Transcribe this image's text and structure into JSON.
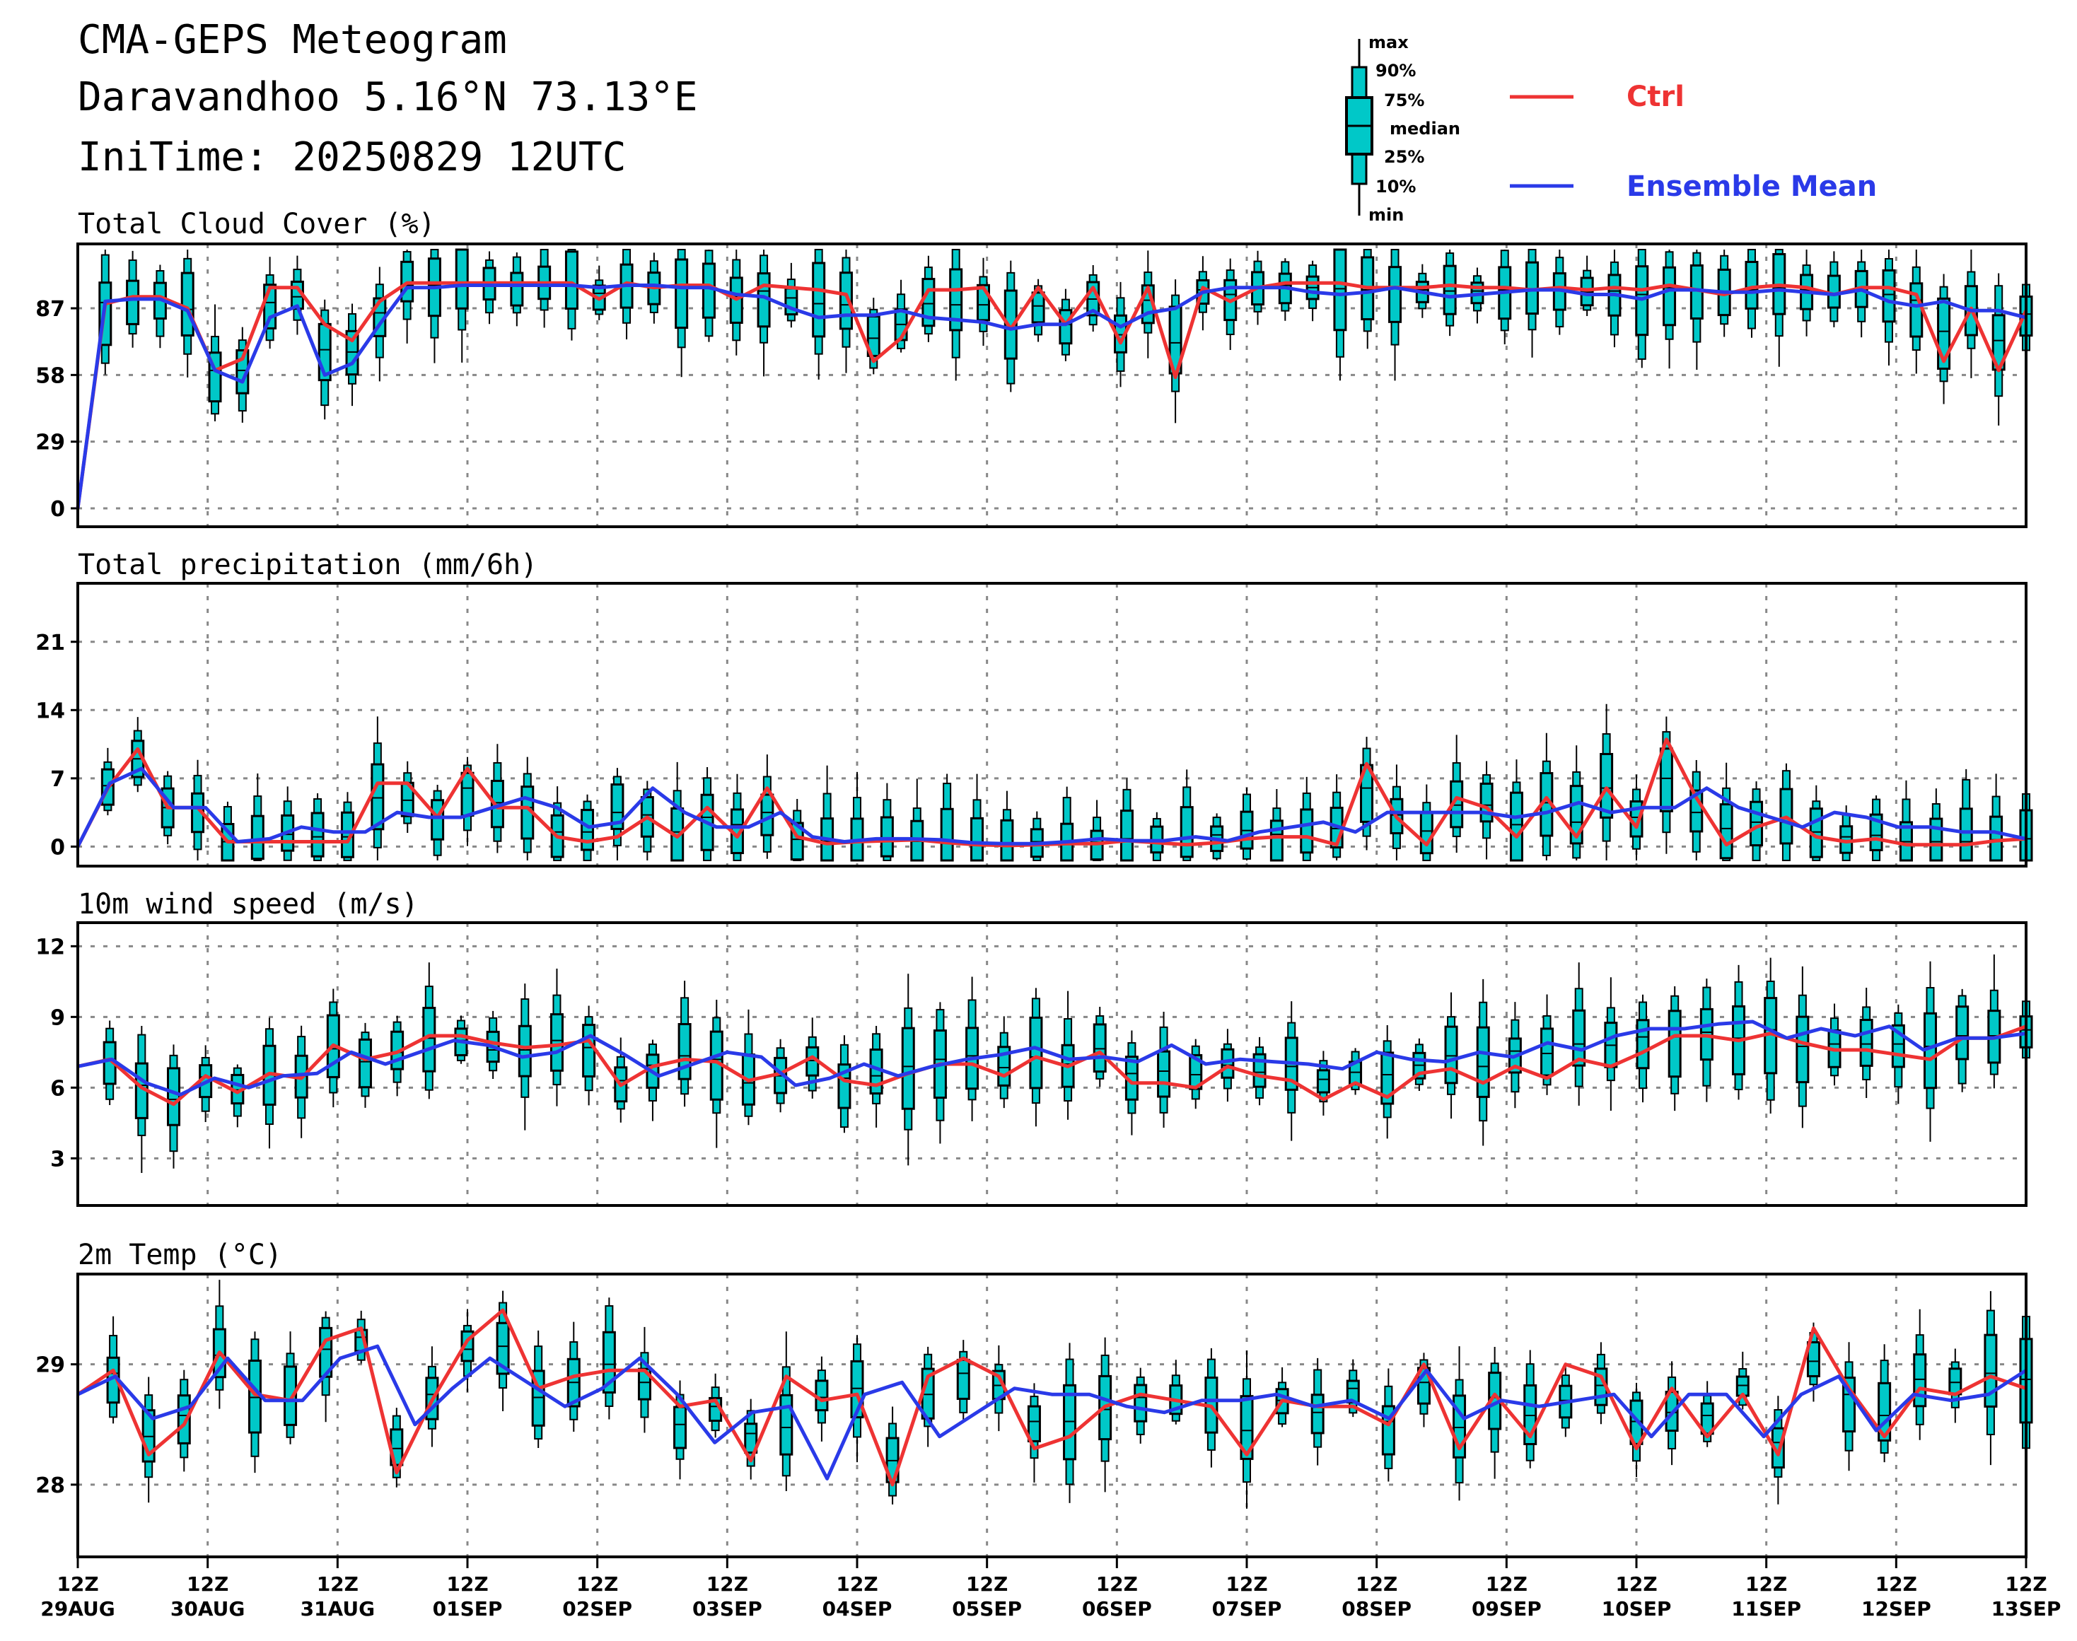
{
  "header": {
    "title": "CMA-GEPS Meteogram",
    "location": "Daravandhoo 5.16°N 73.13°E",
    "init_time": "IniTime: 20250829 12UTC"
  },
  "legend": {
    "box_labels": [
      "max",
      "90%",
      "75%",
      "median",
      "25%",
      "10%",
      "min"
    ],
    "ctrl_label": "Ctrl",
    "mean_label": "Ensemble Mean",
    "ctrl_color": "#ee3333",
    "mean_color": "#2a3ae8",
    "box_fill": "#00c8c8"
  },
  "x_axis": {
    "tick_top": [
      "12Z",
      "12Z",
      "12Z",
      "12Z",
      "12Z",
      "12Z",
      "12Z",
      "12Z",
      "12Z",
      "12Z",
      "12Z",
      "12Z",
      "12Z",
      "12Z",
      "12Z",
      "12Z"
    ],
    "tick_bottom": [
      "29AUG",
      "30AUG",
      "31AUG",
      "01SEP",
      "02SEP",
      "03SEP",
      "04SEP",
      "05SEP",
      "06SEP",
      "07SEP",
      "08SEP",
      "09SEP",
      "10SEP",
      "11SEP",
      "12SEP",
      "13SEP"
    ]
  },
  "chart_data": [
    {
      "type": "box",
      "title": "Total Cloud Cover (%)",
      "ylim": [
        -8,
        115
      ],
      "yticks": [
        0,
        29,
        58,
        87
      ],
      "ctrl": [
        0,
        89,
        92,
        92,
        87,
        60,
        65,
        96,
        96,
        80,
        73,
        90,
        98,
        98,
        98,
        98,
        98,
        98,
        98,
        91,
        98,
        96,
        97,
        97,
        91,
        97,
        96,
        95,
        93,
        64,
        74,
        95,
        95,
        96,
        78,
        96,
        80,
        96,
        72,
        96,
        57,
        96,
        90,
        96,
        98,
        98,
        98,
        96,
        96,
        96,
        97,
        96,
        96,
        95,
        96,
        95,
        96,
        95,
        97,
        95,
        93,
        96,
        97,
        96,
        93,
        96,
        96,
        93,
        64,
        87,
        60,
        86
      ],
      "mean": [
        0,
        90,
        91,
        91,
        86,
        60,
        55,
        83,
        88,
        58,
        63,
        80,
        96,
        96,
        97,
        97,
        97,
        97,
        97,
        96,
        97,
        97,
        96,
        96,
        93,
        92,
        87,
        83,
        84,
        84,
        86,
        83,
        82,
        81,
        78,
        80,
        80,
        86,
        79,
        85,
        87,
        94,
        96,
        96,
        96,
        94,
        93,
        94,
        96,
        94,
        92,
        93,
        94,
        95,
        95,
        93,
        93,
        91,
        95,
        95,
        94,
        94,
        95,
        94,
        93,
        95,
        90,
        88,
        90,
        86,
        86,
        83
      ]
    },
    {
      "type": "box",
      "title": "Total precipitation (mm/6h)",
      "ylim": [
        -2,
        27
      ],
      "yticks": [
        0,
        7,
        14,
        21
      ],
      "ctrl": [
        0,
        6,
        10,
        4,
        4,
        0.5,
        0.5,
        0.5,
        0.5,
        0.5,
        6.5,
        6.5,
        3,
        8,
        4,
        4,
        1,
        0.5,
        1,
        3,
        1,
        4,
        1,
        6,
        1,
        0.3,
        0.5,
        0.6,
        0.7,
        0.4,
        0.2,
        0.1,
        0.2,
        0.3,
        0.3,
        0.6,
        0.4,
        0.2,
        0.4,
        0.8,
        1,
        1,
        0.2,
        8.5,
        3,
        0.2,
        5,
        4,
        1,
        5,
        1,
        6,
        2,
        11,
        5,
        0.2,
        2,
        3,
        1,
        0.5,
        0.8,
        0.2,
        0.2,
        0.2,
        0.6,
        0.8
      ],
      "mean": [
        0,
        6.5,
        8,
        4,
        4,
        0.5,
        0.8,
        2,
        1.5,
        1.5,
        3.5,
        3,
        3,
        4,
        5,
        4,
        2,
        2.5,
        6,
        3.5,
        2,
        2,
        3.5,
        1,
        0.5,
        0.8,
        0.8,
        0.7,
        0.4,
        0.3,
        0.3,
        0.5,
        0.8,
        0.6,
        0.6,
        1,
        0.6,
        1.5,
        2,
        2.5,
        1.5,
        3.5,
        3.5,
        3.5,
        3.5,
        3,
        3.5,
        4.5,
        3.5,
        4,
        4,
        6,
        4,
        3,
        2,
        3.5,
        3,
        2,
        2,
        1.5,
        1.5,
        0.8
      ]
    },
    {
      "type": "box",
      "title": "10m wind speed (m/s)",
      "ylim": [
        1,
        13
      ],
      "yticks": [
        3,
        6,
        9,
        12
      ],
      "ctrl": [
        6.9,
        7.2,
        6,
        5.3,
        6.5,
        5.8,
        6.6,
        6.4,
        7.8,
        7.2,
        7.5,
        8.2,
        8.2,
        7.9,
        7.7,
        7.8,
        8,
        6.1,
        6.9,
        7.2,
        7.1,
        6.3,
        6.6,
        7.3,
        6.3,
        6.1,
        6.6,
        7,
        7,
        6.5,
        7.3,
        6.9,
        7.5,
        6.2,
        6.2,
        6,
        6.9,
        6.5,
        6.3,
        5.5,
        6.2,
        5.6,
        6.6,
        6.8,
        6.2,
        6.9,
        6.4,
        7.2,
        6.9,
        7.5,
        8.2,
        8.2,
        8,
        8.3,
        7.9,
        7.6,
        7.6,
        7.4,
        7.2,
        8.1,
        8.1,
        8.6
      ],
      "mean": [
        6.9,
        7.2,
        6.2,
        5.7,
        6.4,
        6,
        6.5,
        6.6,
        7.5,
        7,
        7.5,
        8,
        7.8,
        7.3,
        7.5,
        8.2,
        7.4,
        6.5,
        7,
        7.5,
        7.3,
        6.1,
        6.4,
        7,
        6.5,
        6.9,
        7.2,
        7.4,
        7.7,
        7.2,
        7.3,
        7.1,
        7.8,
        7,
        7.2,
        7.1,
        7,
        6.8,
        7.5,
        7.2,
        7.1,
        7.5,
        7.3,
        7.9,
        7.6,
        8.2,
        8.5,
        8.5,
        8.7,
        8.8,
        8.1,
        8.5,
        8.2,
        8.6,
        7.6,
        8.1,
        8.1,
        8.3
      ]
    },
    {
      "type": "box",
      "title": "2m Temp (°C)",
      "ylim": [
        27.4,
        29.75
      ],
      "yticks": [
        28,
        29
      ],
      "ctrl": [
        28.75,
        28.95,
        28.25,
        28.5,
        29.1,
        28.75,
        28.7,
        29.2,
        29.3,
        28.1,
        28.7,
        29.2,
        29.45,
        28.8,
        28.9,
        28.95,
        28.95,
        28.65,
        28.7,
        28.2,
        28.9,
        28.7,
        28.75,
        28,
        28.9,
        29.05,
        28.9,
        28.3,
        28.4,
        28.65,
        28.75,
        28.7,
        28.65,
        28.25,
        28.7,
        28.65,
        28.65,
        28.5,
        29,
        28.3,
        28.75,
        28.4,
        29,
        28.9,
        28.3,
        28.8,
        28.4,
        28.75,
        28.25,
        29.3,
        28.8,
        28.4,
        28.8,
        28.75,
        28.9,
        28.8
      ],
      "mean": [
        28.75,
        28.9,
        28.55,
        28.65,
        29.05,
        28.7,
        28.7,
        29.05,
        29.15,
        28.5,
        28.8,
        29.05,
        28.85,
        28.65,
        28.8,
        29.05,
        28.75,
        28.35,
        28.6,
        28.65,
        28.05,
        28.75,
        28.85,
        28.4,
        28.6,
        28.8,
        28.75,
        28.75,
        28.65,
        28.6,
        28.7,
        28.7,
        28.75,
        28.65,
        28.7,
        28.55,
        28.95,
        28.55,
        28.7,
        28.65,
        28.7,
        28.75,
        28.4,
        28.75,
        28.75,
        28.4,
        28.75,
        28.9,
        28.45,
        28.75,
        28.7,
        28.75,
        28.95
      ]
    }
  ]
}
